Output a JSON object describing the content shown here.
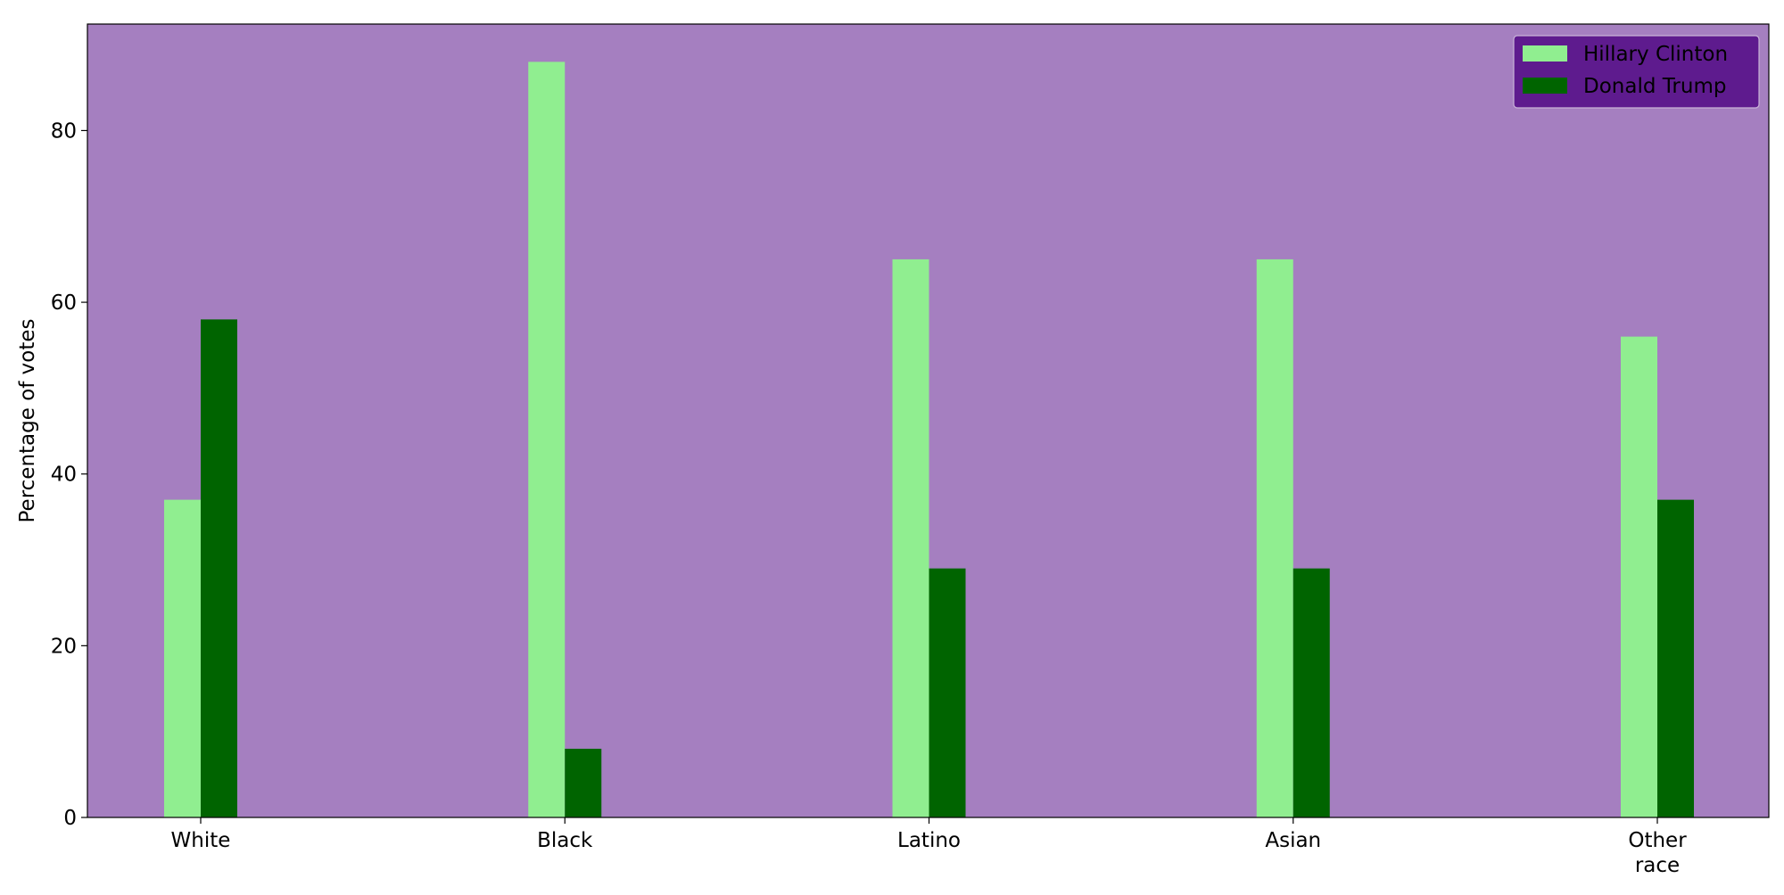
{
  "chart_data": {
    "type": "bar",
    "title": "",
    "xlabel": "",
    "ylabel": "Percentage of votes",
    "categories": [
      "White",
      "Black",
      "Latino",
      "Asian",
      "Other race"
    ],
    "series": [
      {
        "name": "Hillary Clinton",
        "values": [
          37,
          88,
          65,
          65,
          56
        ],
        "color": "#90ee90"
      },
      {
        "name": "Donald Trump",
        "values": [
          58,
          8,
          29,
          29,
          37
        ],
        "color": "#006400"
      }
    ],
    "ylim": [
      0,
      92.4
    ],
    "yticks": [
      0,
      20,
      40,
      60,
      80
    ],
    "grid": false,
    "legend_position": "top-right",
    "plot_background": "#a57fc0",
    "legend_background": "#5e1b8e"
  }
}
